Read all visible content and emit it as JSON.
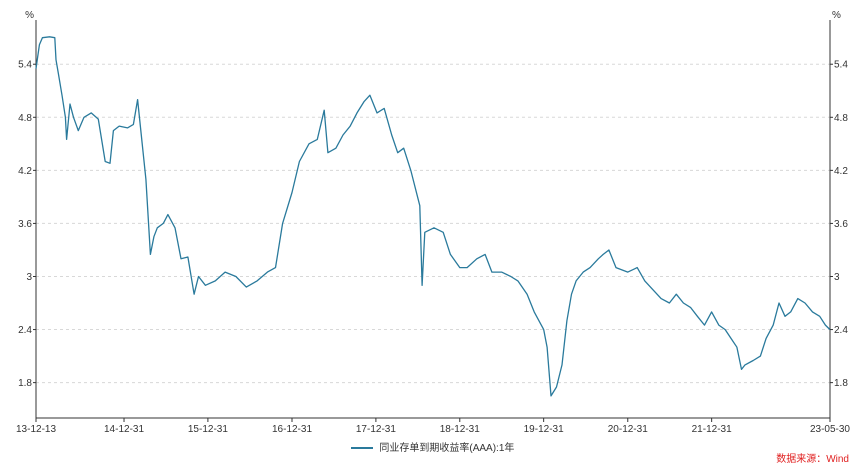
{
  "chart_data": {
    "type": "line",
    "ylabel_left": "%",
    "ylabel_right": "%",
    "ylim": [
      1.4,
      5.9
    ],
    "yticks": [
      1.8,
      2.4,
      3,
      3.6,
      4.2,
      4.8,
      5.4
    ],
    "ytick_labels": [
      "1.8",
      "2.4",
      "3",
      "3.6",
      "4.2",
      "4.8",
      "5.4"
    ],
    "x_range": [
      "2013-12-13",
      "2023-05-30"
    ],
    "xticks": [
      "2013-12-13",
      "2014-12-31",
      "2015-12-31",
      "2016-12-31",
      "2017-12-31",
      "2018-12-31",
      "2019-12-31",
      "2020-12-31",
      "2021-12-31",
      "2023-05-30"
    ],
    "xtick_labels": [
      "13-12-13",
      "14-12-31",
      "15-12-31",
      "16-12-31",
      "17-12-31",
      "18-12-31",
      "19-12-31",
      "20-12-31",
      "21-12-31",
      "23-05-30"
    ],
    "grid": true,
    "legend_position": "bottom-center",
    "series": [
      {
        "name": "同业存单到期收益率(AAA):1年",
        "color": "#2a7a9c",
        "points": [
          [
            "2013-12-13",
            5.35
          ],
          [
            "2013-12-28",
            5.62
          ],
          [
            "2014-01-10",
            5.7
          ],
          [
            "2014-02-10",
            5.71
          ],
          [
            "2014-03-05",
            5.7
          ],
          [
            "2014-03-10",
            5.45
          ],
          [
            "2014-03-20",
            5.3
          ],
          [
            "2014-04-05",
            5.05
          ],
          [
            "2014-04-20",
            4.8
          ],
          [
            "2014-04-25",
            4.55
          ],
          [
            "2014-05-10",
            4.95
          ],
          [
            "2014-05-25",
            4.8
          ],
          [
            "2014-06-15",
            4.65
          ],
          [
            "2014-07-10",
            4.8
          ],
          [
            "2014-08-10",
            4.85
          ],
          [
            "2014-09-10",
            4.78
          ],
          [
            "2014-10-10",
            4.3
          ],
          [
            "2014-10-31",
            4.28
          ],
          [
            "2014-11-15",
            4.65
          ],
          [
            "2014-12-10",
            4.7
          ],
          [
            "2015-01-15",
            4.68
          ],
          [
            "2015-02-10",
            4.72
          ],
          [
            "2015-02-28",
            5.0
          ],
          [
            "2015-03-20",
            4.5
          ],
          [
            "2015-04-05",
            4.1
          ],
          [
            "2015-04-25",
            3.25
          ],
          [
            "2015-05-10",
            3.45
          ],
          [
            "2015-05-25",
            3.55
          ],
          [
            "2015-06-20",
            3.6
          ],
          [
            "2015-07-10",
            3.7
          ],
          [
            "2015-08-10",
            3.55
          ],
          [
            "2015-09-05",
            3.2
          ],
          [
            "2015-10-05",
            3.22
          ],
          [
            "2015-11-01",
            2.8
          ],
          [
            "2015-11-20",
            3.0
          ],
          [
            "2015-12-20",
            2.9
          ],
          [
            "2016-02-01",
            2.95
          ],
          [
            "2016-03-15",
            3.05
          ],
          [
            "2016-05-01",
            3.0
          ],
          [
            "2016-06-15",
            2.88
          ],
          [
            "2016-08-01",
            2.95
          ],
          [
            "2016-09-15",
            3.05
          ],
          [
            "2016-10-20",
            3.1
          ],
          [
            "2016-11-20",
            3.6
          ],
          [
            "2016-12-31",
            3.95
          ],
          [
            "2017-02-01",
            4.3
          ],
          [
            "2017-03-15",
            4.5
          ],
          [
            "2017-04-20",
            4.55
          ],
          [
            "2017-05-20",
            4.88
          ],
          [
            "2017-06-05",
            4.4
          ],
          [
            "2017-07-10",
            4.45
          ],
          [
            "2017-08-10",
            4.6
          ],
          [
            "2017-09-10",
            4.7
          ],
          [
            "2017-10-10",
            4.85
          ],
          [
            "2017-11-10",
            4.98
          ],
          [
            "2017-12-05",
            5.05
          ],
          [
            "2018-01-05",
            4.85
          ],
          [
            "2018-02-05",
            4.9
          ],
          [
            "2018-03-10",
            4.6
          ],
          [
            "2018-04-05",
            4.4
          ],
          [
            "2018-05-01",
            4.45
          ],
          [
            "2018-06-01",
            4.2
          ],
          [
            "2018-07-10",
            3.8
          ],
          [
            "2018-07-20",
            2.9
          ],
          [
            "2018-08-01",
            3.5
          ],
          [
            "2018-09-10",
            3.55
          ],
          [
            "2018-10-20",
            3.5
          ],
          [
            "2018-11-20",
            3.25
          ],
          [
            "2018-12-31",
            3.1
          ],
          [
            "2019-02-01",
            3.1
          ],
          [
            "2019-03-15",
            3.2
          ],
          [
            "2019-04-20",
            3.25
          ],
          [
            "2019-05-20",
            3.05
          ],
          [
            "2019-07-01",
            3.05
          ],
          [
            "2019-08-10",
            3.0
          ],
          [
            "2019-09-10",
            2.95
          ],
          [
            "2019-10-20",
            2.8
          ],
          [
            "2019-11-20",
            2.6
          ],
          [
            "2019-12-31",
            2.4
          ],
          [
            "2020-01-15",
            2.2
          ],
          [
            "2020-02-01",
            1.65
          ],
          [
            "2020-02-25",
            1.75
          ],
          [
            "2020-03-20",
            2.0
          ],
          [
            "2020-04-10",
            2.5
          ],
          [
            "2020-04-30",
            2.8
          ],
          [
            "2020-05-20",
            2.95
          ],
          [
            "2020-06-20",
            3.05
          ],
          [
            "2020-07-20",
            3.1
          ],
          [
            "2020-08-25",
            3.2
          ],
          [
            "2020-09-15",
            3.25
          ],
          [
            "2020-10-10",
            3.3
          ],
          [
            "2020-11-10",
            3.1
          ],
          [
            "2020-12-31",
            3.05
          ],
          [
            "2021-02-10",
            3.1
          ],
          [
            "2021-03-15",
            2.95
          ],
          [
            "2021-04-20",
            2.85
          ],
          [
            "2021-05-25",
            2.75
          ],
          [
            "2021-06-30",
            2.7
          ],
          [
            "2021-07-30",
            2.8
          ],
          [
            "2021-08-30",
            2.7
          ],
          [
            "2021-09-30",
            2.65
          ],
          [
            "2021-10-30",
            2.55
          ],
          [
            "2021-11-30",
            2.45
          ],
          [
            "2021-12-31",
            2.6
          ],
          [
            "2022-01-31",
            2.45
          ],
          [
            "2022-02-28",
            2.4
          ],
          [
            "2022-03-25",
            2.3
          ],
          [
            "2022-04-20",
            2.2
          ],
          [
            "2022-05-10",
            1.95
          ],
          [
            "2022-05-25",
            2.0
          ],
          [
            "2022-06-30",
            2.05
          ],
          [
            "2022-07-31",
            2.1
          ],
          [
            "2022-08-25",
            2.3
          ],
          [
            "2022-09-25",
            2.45
          ],
          [
            "2022-10-20",
            2.7
          ],
          [
            "2022-11-15",
            2.55
          ],
          [
            "2022-12-10",
            2.6
          ],
          [
            "2023-01-10",
            2.75
          ],
          [
            "2023-02-10",
            2.7
          ],
          [
            "2023-03-15",
            2.6
          ],
          [
            "2023-04-15",
            2.55
          ],
          [
            "2023-05-10",
            2.45
          ],
          [
            "2023-05-30",
            2.4
          ]
        ]
      }
    ]
  },
  "legend": {
    "series_label": "同业存单到期收益率(AAA):1年"
  },
  "source_note": "数据来源：Wind"
}
